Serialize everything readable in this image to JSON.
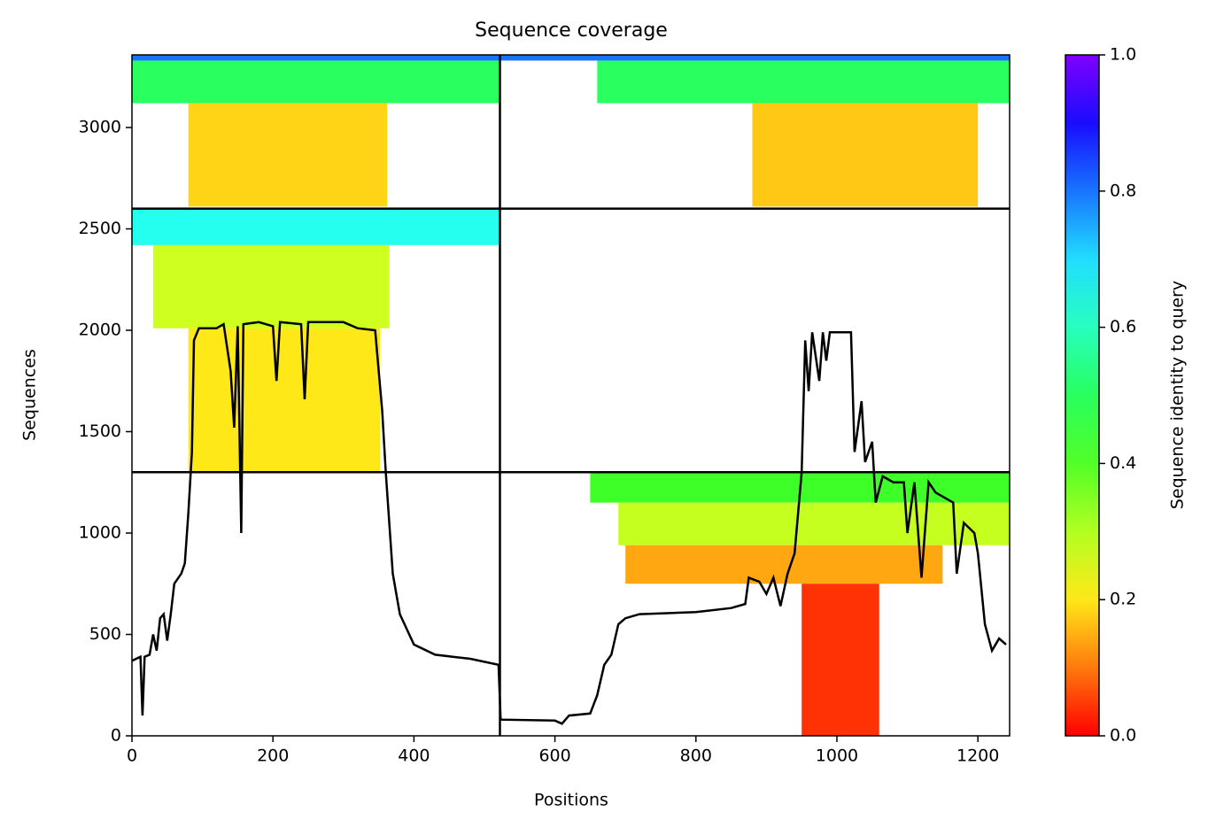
{
  "chart_data": {
    "type": "coverage",
    "title": "Sequence coverage",
    "xlabel": "Positions",
    "ylabel": "Sequences",
    "xlim": [
      0,
      1245
    ],
    "ylim": [
      0,
      3358
    ],
    "xticks": [
      0,
      200,
      400,
      600,
      800,
      1000,
      1200
    ],
    "yticks": [
      0,
      500,
      1000,
      1500,
      2000,
      2500,
      3000
    ],
    "colorbar": {
      "label": "Sequence identity to query",
      "lim": [
        0,
        1
      ],
      "ticks": [
        {
          "value": 0,
          "label": "0.0"
        },
        0.2,
        0.4,
        0.6,
        0.8,
        {
          "value": 1,
          "label": "1.0"
        }
      ]
    },
    "dividers": {
      "x": [
        522
      ],
      "y": [
        1300,
        2600
      ]
    },
    "blocks": [
      {
        "x": [
          0,
          522
        ],
        "y": [
          3120,
          3330
        ],
        "identity": 0.5
      },
      {
        "x": [
          0,
          522
        ],
        "y": [
          3330,
          3358
        ],
        "identity": 0.8
      },
      {
        "x": [
          80,
          362
        ],
        "y": [
          2610,
          3120
        ],
        "identity": 0.18
      },
      {
        "x": [
          660,
          1245
        ],
        "y": [
          3120,
          3330
        ],
        "identity": 0.5
      },
      {
        "x": [
          522,
          1245
        ],
        "y": [
          3330,
          3358
        ],
        "identity": 0.8
      },
      {
        "x": [
          880,
          1200
        ],
        "y": [
          2610,
          3120
        ],
        "identity": 0.17
      },
      {
        "x": [
          0,
          522
        ],
        "y": [
          2420,
          2600
        ],
        "identity": 0.65
      },
      {
        "x": [
          30,
          365
        ],
        "y": [
          2010,
          2420
        ],
        "identity": 0.27
      },
      {
        "x": [
          80,
          352
        ],
        "y": [
          1300,
          2010
        ],
        "identity": 0.2
      },
      {
        "x": [
          650,
          1245
        ],
        "y": [
          1150,
          1300
        ],
        "identity": 0.42
      },
      {
        "x": [
          690,
          1245
        ],
        "y": [
          940,
          1150
        ],
        "identity": 0.28
      },
      {
        "x": [
          700,
          1150
        ],
        "y": [
          750,
          940
        ],
        "identity": 0.14
      },
      {
        "x": [
          950,
          1060
        ],
        "y": [
          0,
          750
        ],
        "identity": 0.04
      }
    ],
    "line": {
      "color": "#000000",
      "x": [
        0,
        12,
        15,
        18,
        25,
        30,
        35,
        40,
        45,
        50,
        55,
        60,
        70,
        75,
        80,
        85,
        88,
        95,
        120,
        130,
        140,
        145,
        150,
        155,
        158,
        180,
        200,
        205,
        210,
        240,
        245,
        250,
        300,
        320,
        345,
        355,
        360,
        370,
        380,
        400,
        430,
        480,
        520,
        523,
        600,
        610,
        620,
        650,
        660,
        670,
        680,
        690,
        700,
        720,
        800,
        850,
        870,
        875,
        890,
        900,
        910,
        920,
        930,
        940,
        950,
        955,
        960,
        965,
        975,
        980,
        985,
        990,
        1020,
        1025,
        1035,
        1040,
        1050,
        1055,
        1065,
        1080,
        1095,
        1100,
        1110,
        1120,
        1130,
        1140,
        1150,
        1165,
        1170,
        1180,
        1195,
        1200,
        1210,
        1220,
        1230,
        1240
      ],
      "values": [
        370,
        390,
        100,
        390,
        400,
        500,
        420,
        580,
        600,
        470,
        600,
        750,
        800,
        850,
        1100,
        1400,
        1950,
        2010,
        2010,
        2030,
        1800,
        1520,
        2020,
        1000,
        2030,
        2040,
        2020,
        1750,
        2040,
        2030,
        1660,
        2040,
        2040,
        2010,
        2000,
        1600,
        1300,
        800,
        600,
        450,
        400,
        380,
        350,
        80,
        75,
        60,
        100,
        110,
        200,
        350,
        400,
        550,
        580,
        600,
        610,
        630,
        650,
        780,
        760,
        700,
        780,
        640,
        800,
        900,
        1300,
        1950,
        1700,
        1990,
        1750,
        1990,
        1850,
        1990,
        1990,
        1400,
        1650,
        1350,
        1450,
        1150,
        1280,
        1250,
        1250,
        1000,
        1250,
        780,
        1250,
        1200,
        1180,
        1150,
        800,
        1050,
        1000,
        900,
        550,
        420,
        480,
        450
      ]
    }
  }
}
